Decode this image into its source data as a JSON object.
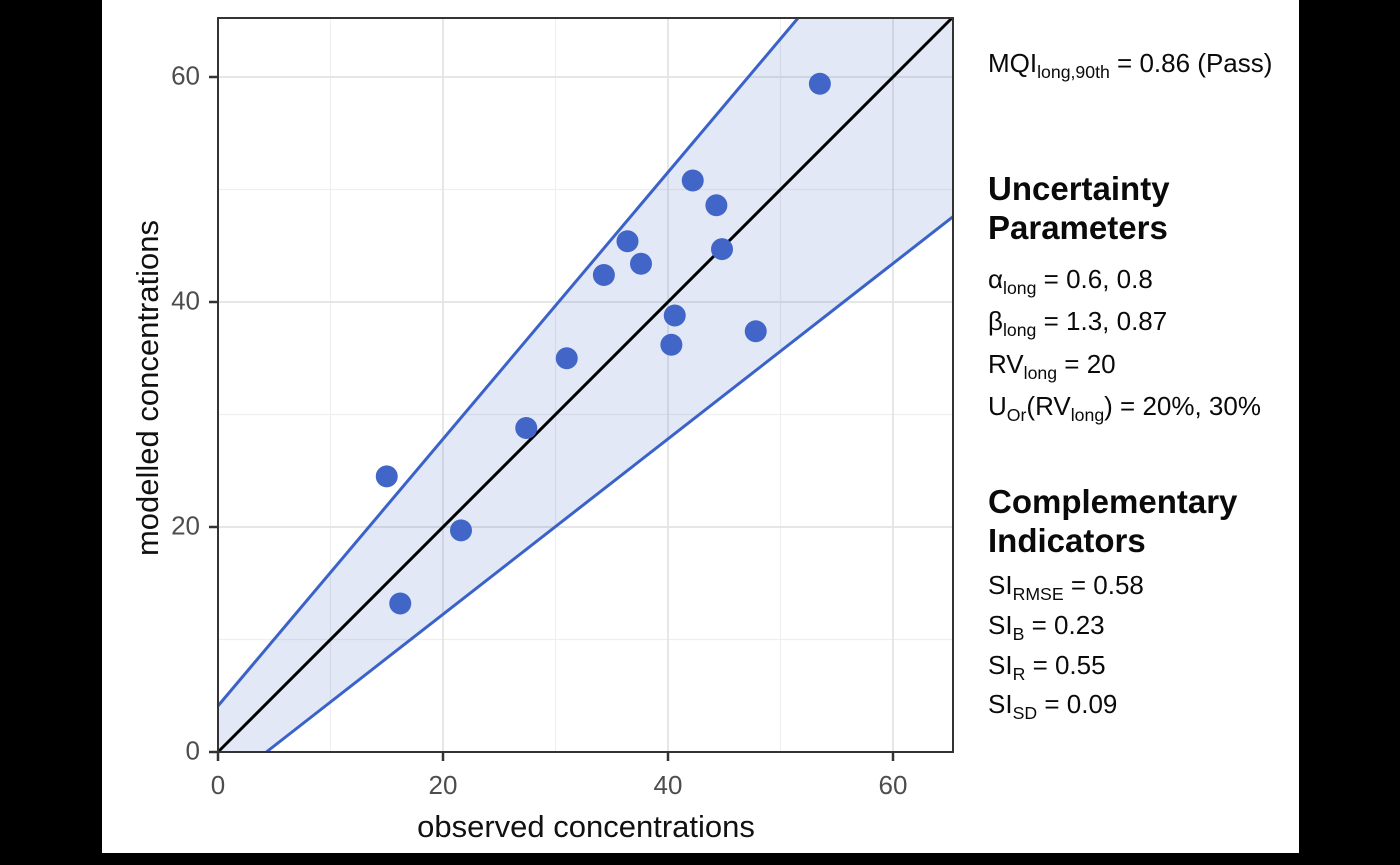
{
  "chart_data": {
    "type": "scatter",
    "title": "",
    "xlabel": "observed concentrations",
    "ylabel": "modelled concentrations",
    "x_ticks": [
      0,
      20,
      40,
      60
    ],
    "y_ticks": [
      0,
      20,
      40,
      60
    ],
    "minor_gridlines": [
      10,
      30,
      50
    ],
    "xlim": [
      0,
      65.3
    ],
    "ylim": [
      0,
      65.2
    ],
    "grid": "on",
    "points": [
      [
        15.0,
        24.5
      ],
      [
        16.2,
        13.2
      ],
      [
        21.6,
        19.7
      ],
      [
        27.4,
        28.8
      ],
      [
        31.0,
        35.0
      ],
      [
        34.3,
        42.4
      ],
      [
        36.4,
        45.4
      ],
      [
        37.6,
        43.4
      ],
      [
        40.3,
        36.2
      ],
      [
        40.6,
        38.8
      ],
      [
        42.2,
        50.8
      ],
      [
        44.3,
        48.6
      ],
      [
        44.8,
        44.7
      ],
      [
        47.8,
        37.4
      ],
      [
        53.5,
        59.4
      ]
    ],
    "identity_line": {
      "from": [
        0,
        0
      ],
      "to": [
        65.2,
        65.2
      ]
    },
    "uncertainty_band": {
      "upper": {
        "y_intercept": 4.1,
        "slope": 1.185
      },
      "lower": {
        "x_intercept": 4.3,
        "slope": 0.78
      }
    },
    "colors": {
      "point": "#4166c8",
      "band_line": "#3a62c8",
      "band_fill": "rgba(63,98,196,0.15)",
      "identity_line": "#000000",
      "grid_major": "#e3e3e3",
      "grid_minor": "#efefef",
      "panel_border": "#333333",
      "axis_text": "#4d4d4d"
    }
  },
  "sidebar": {
    "mqi_line": [
      {
        "t": "MQI"
      },
      {
        "s": "long,90th"
      },
      {
        "t": " = 0.86 (Pass)"
      }
    ],
    "uncertainty_header": "Uncertainty Parameters",
    "params": [
      [
        {
          "t": "α"
        },
        {
          "s": "long"
        },
        {
          "t": " = 0.6, 0.8"
        }
      ],
      [
        {
          "t": "β"
        },
        {
          "s": "long"
        },
        {
          "t": " = 1.3, 0.87"
        }
      ],
      [
        {
          "t": "RV"
        },
        {
          "s": "long"
        },
        {
          "t": " = 20"
        }
      ],
      [
        {
          "t": "U"
        },
        {
          "s": "Or"
        },
        {
          "t": "(RV"
        },
        {
          "s": "long"
        },
        {
          "t": ") = 20%, 30%"
        }
      ]
    ],
    "complementary_header": "Complementary Indicators",
    "indicators": [
      [
        {
          "t": "SI"
        },
        {
          "s": "RMSE"
        },
        {
          "t": " = 0.58"
        }
      ],
      [
        {
          "t": "SI"
        },
        {
          "s": "B"
        },
        {
          "t": " = 0.23"
        }
      ],
      [
        {
          "t": "SI"
        },
        {
          "s": "R"
        },
        {
          "t": " = 0.55"
        }
      ],
      [
        {
          "t": "SI"
        },
        {
          "s": "SD"
        },
        {
          "t": " = 0.09"
        }
      ]
    ]
  }
}
